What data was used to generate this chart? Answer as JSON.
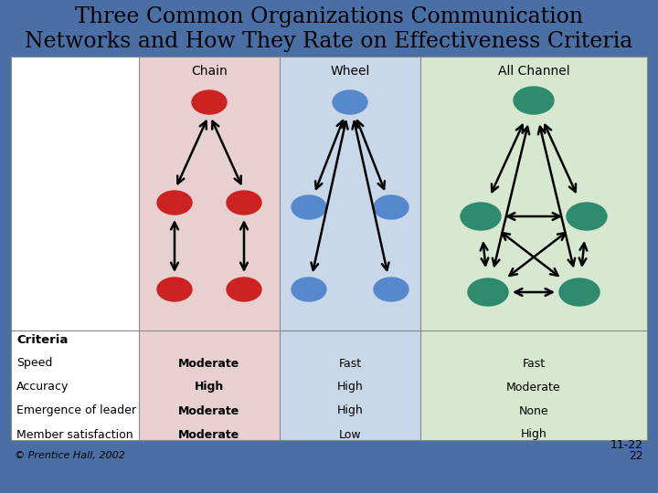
{
  "title_line1": "Three Common Organizations Communication",
  "title_line2": "Networks and How They Rate on Effectiveness Criteria",
  "title_fontsize": 17,
  "bg_color": "#4a6fa5",
  "chain_bg": "#e8d0d0",
  "wheel_bg": "#c8d8e8",
  "allchannel_bg": "#d8e8d0",
  "chain_label": "Chain",
  "wheel_label": "Wheel",
  "allchannel_label": "All Channel",
  "chain_node_color": "#cc2222",
  "wheel_node_color": "#5588cc",
  "allchannel_node_color": "#2e8b6e",
  "criteria_labels": [
    "Criteria",
    "Speed",
    "Accuracy",
    "Emergence of leader",
    "Member satisfaction"
  ],
  "chain_values": [
    "Moderate",
    "High",
    "Moderate",
    "Moderate"
  ],
  "wheel_values": [
    "Fast",
    "High",
    "High",
    "Low"
  ],
  "allchannel_values": [
    "Fast",
    "Moderate",
    "None",
    "High"
  ],
  "footer_left": "© Prentice Hall, 2002",
  "footer_right": "11-22",
  "footer_right2": "22"
}
